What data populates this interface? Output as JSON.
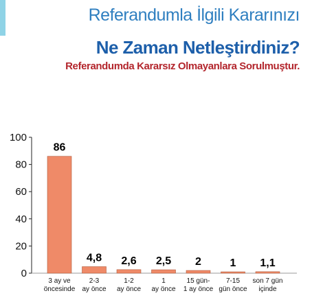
{
  "header": {
    "title_line1": "Referandumla İlgili Kararınızı",
    "title_line2": "Ne Zaman Netleştirdiniz?",
    "subtitle": "Referandumda Kararsız Olmayanlara Sorulmuştur."
  },
  "colors": {
    "bar": "#ef8a68",
    "bar_stroke": "#b05a3c",
    "title_blue": "#2f7fc0",
    "title_dark_blue": "#1d5faa",
    "subtitle_red": "#b3262d",
    "accent": "#8fd3e6"
  },
  "chart_data": {
    "type": "bar",
    "categories": [
      [
        "3 ay ve",
        "öncesinde"
      ],
      [
        "2-3",
        "ay önce"
      ],
      [
        "1-2",
        "ay önce"
      ],
      [
        "1",
        "ay önce"
      ],
      [
        "15 gün-",
        "1 ay önce"
      ],
      [
        "7-15",
        "gün önce"
      ],
      [
        "son 7 gün",
        "içinde"
      ]
    ],
    "values": [
      86,
      4.8,
      2.6,
      2.5,
      2,
      1,
      1.1
    ],
    "value_labels": [
      "86",
      "4,8",
      "2,6",
      "2,5",
      "2",
      "1",
      "1,1"
    ],
    "ylim": [
      0,
      100
    ],
    "yticks": [
      0,
      20,
      40,
      60,
      80,
      100
    ],
    "grid": false,
    "legend": "none"
  }
}
